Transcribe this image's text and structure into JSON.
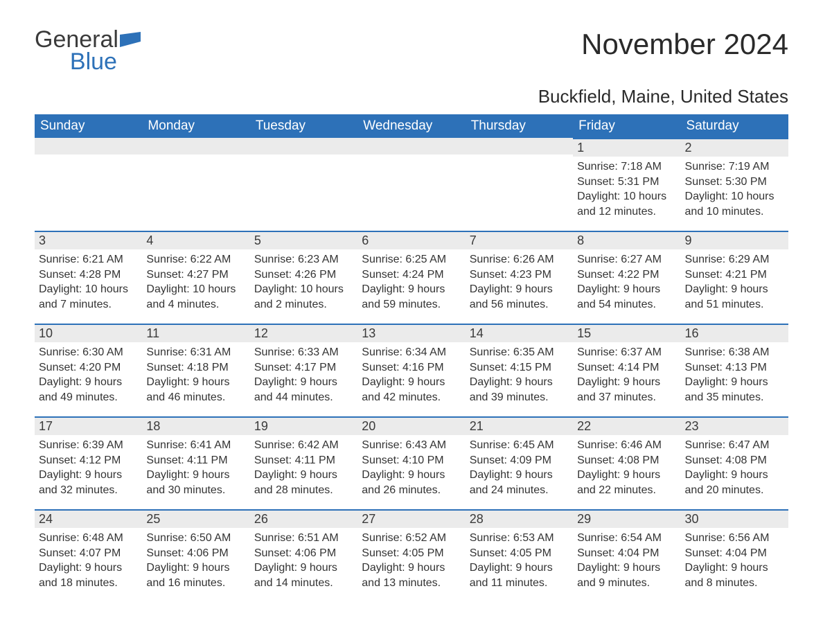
{
  "logo": {
    "word1": "General",
    "word2": "Blue",
    "flag_color": "#2d71b8"
  },
  "title": "November 2024",
  "location": "Buckfield, Maine, United States",
  "colors": {
    "header_bg": "#2d71b8",
    "header_text": "#ffffff",
    "daynum_bg": "#ebebeb",
    "daynum_border": "#2d71b8",
    "body_text": "#333333",
    "page_bg": "#ffffff"
  },
  "typography": {
    "title_fontsize": 42,
    "location_fontsize": 26,
    "header_fontsize": 19,
    "daynum_fontsize": 18,
    "body_fontsize": 16,
    "font_family": "Arial"
  },
  "layout": {
    "columns": 7,
    "rows": 5,
    "first_day_column_index": 5
  },
  "weekdays": [
    "Sunday",
    "Monday",
    "Tuesday",
    "Wednesday",
    "Thursday",
    "Friday",
    "Saturday"
  ],
  "labels": {
    "sunrise": "Sunrise:",
    "sunset": "Sunset:",
    "daylight": "Daylight:"
  },
  "days": [
    {
      "n": 1,
      "sunrise": "7:18 AM",
      "sunset": "5:31 PM",
      "daylight": "10 hours and 12 minutes."
    },
    {
      "n": 2,
      "sunrise": "7:19 AM",
      "sunset": "5:30 PM",
      "daylight": "10 hours and 10 minutes."
    },
    {
      "n": 3,
      "sunrise": "6:21 AM",
      "sunset": "4:28 PM",
      "daylight": "10 hours and 7 minutes."
    },
    {
      "n": 4,
      "sunrise": "6:22 AM",
      "sunset": "4:27 PM",
      "daylight": "10 hours and 4 minutes."
    },
    {
      "n": 5,
      "sunrise": "6:23 AM",
      "sunset": "4:26 PM",
      "daylight": "10 hours and 2 minutes."
    },
    {
      "n": 6,
      "sunrise": "6:25 AM",
      "sunset": "4:24 PM",
      "daylight": "9 hours and 59 minutes."
    },
    {
      "n": 7,
      "sunrise": "6:26 AM",
      "sunset": "4:23 PM",
      "daylight": "9 hours and 56 minutes."
    },
    {
      "n": 8,
      "sunrise": "6:27 AM",
      "sunset": "4:22 PM",
      "daylight": "9 hours and 54 minutes."
    },
    {
      "n": 9,
      "sunrise": "6:29 AM",
      "sunset": "4:21 PM",
      "daylight": "9 hours and 51 minutes."
    },
    {
      "n": 10,
      "sunrise": "6:30 AM",
      "sunset": "4:20 PM",
      "daylight": "9 hours and 49 minutes."
    },
    {
      "n": 11,
      "sunrise": "6:31 AM",
      "sunset": "4:18 PM",
      "daylight": "9 hours and 46 minutes."
    },
    {
      "n": 12,
      "sunrise": "6:33 AM",
      "sunset": "4:17 PM",
      "daylight": "9 hours and 44 minutes."
    },
    {
      "n": 13,
      "sunrise": "6:34 AM",
      "sunset": "4:16 PM",
      "daylight": "9 hours and 42 minutes."
    },
    {
      "n": 14,
      "sunrise": "6:35 AM",
      "sunset": "4:15 PM",
      "daylight": "9 hours and 39 minutes."
    },
    {
      "n": 15,
      "sunrise": "6:37 AM",
      "sunset": "4:14 PM",
      "daylight": "9 hours and 37 minutes."
    },
    {
      "n": 16,
      "sunrise": "6:38 AM",
      "sunset": "4:13 PM",
      "daylight": "9 hours and 35 minutes."
    },
    {
      "n": 17,
      "sunrise": "6:39 AM",
      "sunset": "4:12 PM",
      "daylight": "9 hours and 32 minutes."
    },
    {
      "n": 18,
      "sunrise": "6:41 AM",
      "sunset": "4:11 PM",
      "daylight": "9 hours and 30 minutes."
    },
    {
      "n": 19,
      "sunrise": "6:42 AM",
      "sunset": "4:11 PM",
      "daylight": "9 hours and 28 minutes."
    },
    {
      "n": 20,
      "sunrise": "6:43 AM",
      "sunset": "4:10 PM",
      "daylight": "9 hours and 26 minutes."
    },
    {
      "n": 21,
      "sunrise": "6:45 AM",
      "sunset": "4:09 PM",
      "daylight": "9 hours and 24 minutes."
    },
    {
      "n": 22,
      "sunrise": "6:46 AM",
      "sunset": "4:08 PM",
      "daylight": "9 hours and 22 minutes."
    },
    {
      "n": 23,
      "sunrise": "6:47 AM",
      "sunset": "4:08 PM",
      "daylight": "9 hours and 20 minutes."
    },
    {
      "n": 24,
      "sunrise": "6:48 AM",
      "sunset": "4:07 PM",
      "daylight": "9 hours and 18 minutes."
    },
    {
      "n": 25,
      "sunrise": "6:50 AM",
      "sunset": "4:06 PM",
      "daylight": "9 hours and 16 minutes."
    },
    {
      "n": 26,
      "sunrise": "6:51 AM",
      "sunset": "4:06 PM",
      "daylight": "9 hours and 14 minutes."
    },
    {
      "n": 27,
      "sunrise": "6:52 AM",
      "sunset": "4:05 PM",
      "daylight": "9 hours and 13 minutes."
    },
    {
      "n": 28,
      "sunrise": "6:53 AM",
      "sunset": "4:05 PM",
      "daylight": "9 hours and 11 minutes."
    },
    {
      "n": 29,
      "sunrise": "6:54 AM",
      "sunset": "4:04 PM",
      "daylight": "9 hours and 9 minutes."
    },
    {
      "n": 30,
      "sunrise": "6:56 AM",
      "sunset": "4:04 PM",
      "daylight": "9 hours and 8 minutes."
    }
  ]
}
